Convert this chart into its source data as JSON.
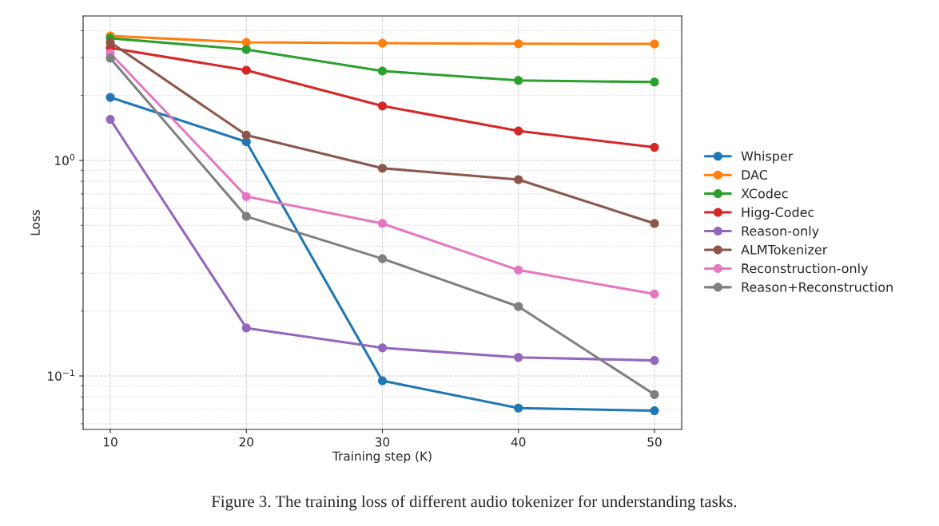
{
  "chart_data": {
    "type": "line",
    "xlabel": "Training step (K)",
    "ylabel": "Loss",
    "x": [
      10,
      20,
      30,
      40,
      50
    ],
    "series": [
      {
        "name": "Whisper",
        "color": "#1f77b4",
        "values": [
          1.96,
          1.22,
          0.095,
          0.071,
          0.069
        ]
      },
      {
        "name": "DAC",
        "color": "#ff7f0e",
        "values": [
          3.78,
          3.53,
          3.5,
          3.48,
          3.47
        ]
      },
      {
        "name": "XCodec",
        "color": "#2ca02c",
        "values": [
          3.69,
          3.27,
          2.6,
          2.35,
          2.31
        ]
      },
      {
        "name": "Higg-Codec",
        "color": "#d62728",
        "values": [
          3.33,
          2.62,
          1.79,
          1.37,
          1.15
        ]
      },
      {
        "name": "Reason-only",
        "color": "#9467bd",
        "values": [
          1.55,
          0.167,
          0.135,
          0.122,
          0.118
        ]
      },
      {
        "name": "ALMTokenizer",
        "color": "#8c564b",
        "values": [
          3.53,
          1.31,
          0.92,
          0.815,
          0.51
        ]
      },
      {
        "name": "Reconstruction-only",
        "color": "#e377c2",
        "values": [
          3.14,
          0.68,
          0.51,
          0.31,
          0.24
        ]
      },
      {
        "name": "Reason+Reconstruction",
        "color": "#7f7f7f",
        "values": [
          2.98,
          0.55,
          0.35,
          0.21,
          0.082
        ]
      }
    ],
    "log": "y",
    "xlim": [
      8,
      52
    ],
    "xticks": [
      10,
      20,
      30,
      40,
      50
    ],
    "ylim": [
      0.0565,
      4.68
    ],
    "yticks": [
      {
        "value": 0.1,
        "label": "10$^{−1}$"
      },
      {
        "value": 1,
        "label": "10$^{0}$"
      }
    ],
    "grid": true,
    "legend": "right",
    "marker": "circle",
    "line_style": "solid",
    "annotations": [
      "Figure 3. The training loss of different audio tokenizer for understanding tasks."
    ]
  }
}
